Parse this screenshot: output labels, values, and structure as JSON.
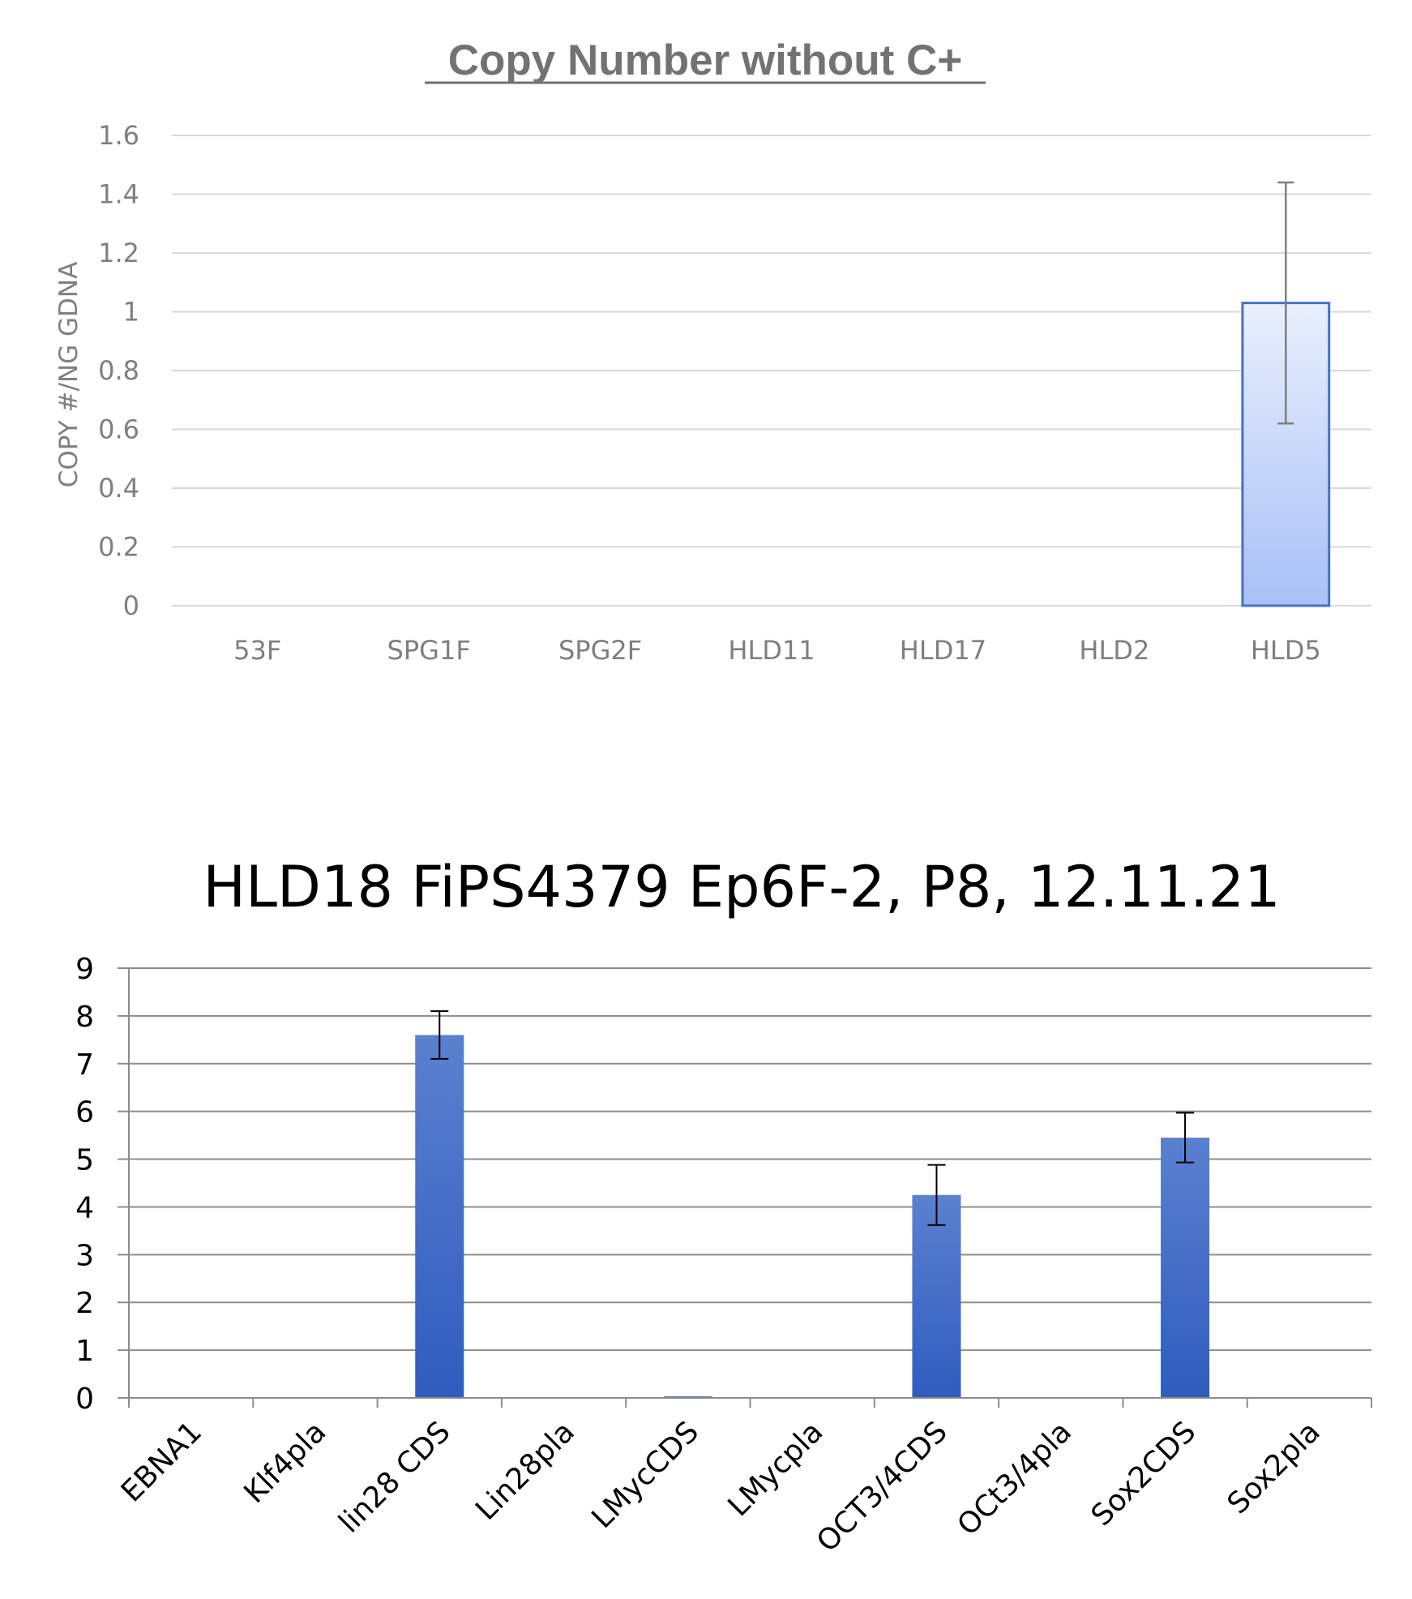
{
  "chart_data": [
    {
      "type": "bar",
      "title": "Copy Number without C+",
      "xlabel": "",
      "ylabel": "COPY #/NG GDNA",
      "categories": [
        "53F",
        "SPG1F",
        "SPG2F",
        "HLD11",
        "HLD17",
        "HLD2",
        "HLD5"
      ],
      "values": [
        0,
        0,
        0,
        0,
        0,
        0,
        1.03
      ],
      "error": [
        null,
        null,
        null,
        null,
        null,
        null,
        0.41
      ],
      "ylim": [
        0,
        1.6
      ],
      "yticks": [
        "0",
        "0.2",
        "0.4",
        "0.6",
        "0.8",
        "1",
        "1.2",
        "1.4",
        "1.6"
      ],
      "grid": true,
      "legend": "none",
      "bar_color": "#a9c0f7",
      "bar_edge": "#4472c4"
    },
    {
      "type": "bar",
      "title": "HLD18 FiPS4379 Ep6F-2, P8, 12.11.21",
      "xlabel": "",
      "ylabel": "",
      "categories": [
        "EBNA1",
        "Klf4pla",
        "lin28 CDS",
        "Lin28pla",
        "LMycCDS",
        "LMycpla",
        "OCT3/4CDS",
        "OCt3/4pla",
        "Sox2CDS",
        "Sox2pla"
      ],
      "values": [
        0,
        0,
        7.6,
        0,
        0.02,
        0,
        4.25,
        0,
        5.45,
        0
      ],
      "error": [
        null,
        null,
        0.5,
        null,
        null,
        null,
        0.63,
        null,
        0.52,
        null
      ],
      "ylim": [
        0,
        9
      ],
      "yticks": [
        "0",
        "1",
        "2",
        "3",
        "4",
        "5",
        "6",
        "7",
        "8",
        "9"
      ],
      "grid": true,
      "legend": "none",
      "bar_color": "#3a64c0"
    }
  ]
}
